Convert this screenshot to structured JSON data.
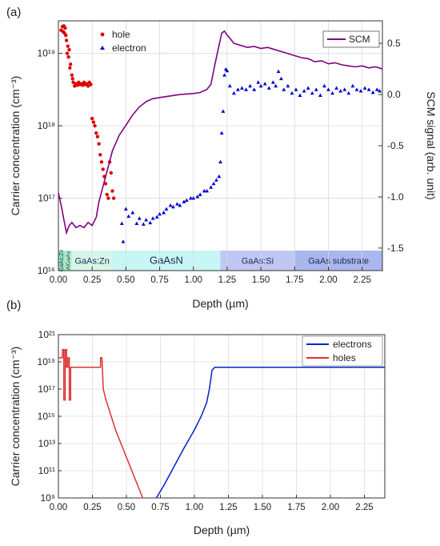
{
  "panel_labels": {
    "a": "(a)",
    "b": "(b)"
  },
  "chart_data": [
    {
      "type": "scatter",
      "panel": "(a)",
      "xlabel": "Depth (µm)",
      "ylabel": "Carrier concentration (cm⁻³)",
      "ylabel_right": "SCM signal (arb. unit)",
      "xlim": [
        0,
        2.4
      ],
      "ylim_log": [
        16,
        19.45
      ],
      "ylim_right": [
        -1.72,
        0.72
      ],
      "x_ticks": [
        "0.00",
        "0.25",
        "0.50",
        "0.75",
        "1.00",
        "1.25",
        "1.50",
        "1.75",
        "2.00",
        "2.25"
      ],
      "y_ticks": [
        "10¹⁶",
        "10¹⁷",
        "10¹⁸",
        "10¹⁹"
      ],
      "y_right_ticks": [
        "0.5",
        "0.0",
        "-0.5",
        "-1.0",
        "-1.5"
      ],
      "grid": true,
      "legend_left": {
        "placement": "top-left",
        "entries": [
          {
            "label": "hole",
            "color": "#e00000",
            "marker": "circle"
          },
          {
            "label": "electron",
            "color": "#0000d0",
            "marker": "triangle"
          }
        ]
      },
      "legend_right": {
        "placement": "top-right",
        "entries": [
          {
            "label": "SCM",
            "color": "#800080",
            "marker": "line"
          }
        ]
      },
      "layers": [
        {
          "label": "GaAs:Zn",
          "x": [
            0.0,
            0.05
          ],
          "color": "#9ee6c4",
          "rotated": true
        },
        {
          "label": "AlGaAs",
          "x": [
            0.05,
            0.1
          ],
          "color": "#b9f0d8",
          "rotated": true
        },
        {
          "label": "GaAs:Zn",
          "x": [
            0.1,
            0.4
          ],
          "color": "#d6f7e8",
          "rotated": false
        },
        {
          "label": "GaAsN",
          "x": [
            0.4,
            1.2
          ],
          "color": "#c8f6f4",
          "rotated": false
        },
        {
          "label": "GaAs:Si",
          "x": [
            1.2,
            1.75
          ],
          "color": "#bfc8f2",
          "rotated": false
        },
        {
          "label": "GaAs substrate",
          "x": [
            1.75,
            2.4
          ],
          "color": "#aab6ee",
          "rotated": false
        }
      ],
      "series": [
        {
          "name": "hole",
          "color": "#e00000",
          "marker": "circle",
          "x_log10": [
            [
              0.02,
              19.32
            ],
            [
              0.03,
              19.37
            ],
            [
              0.035,
              19.3
            ],
            [
              0.04,
              19.38
            ],
            [
              0.045,
              19.28
            ],
            [
              0.05,
              19.35
            ],
            [
              0.055,
              19.25
            ],
            [
              0.06,
              19.18
            ],
            [
              0.065,
              19.0
            ],
            [
              0.07,
              19.1
            ],
            [
              0.075,
              18.95
            ],
            [
              0.08,
              19.05
            ],
            [
              0.085,
              18.8
            ],
            [
              0.09,
              18.85
            ],
            [
              0.1,
              18.7
            ],
            [
              0.105,
              18.65
            ],
            [
              0.11,
              18.6
            ],
            [
              0.12,
              18.55
            ],
            [
              0.13,
              18.58
            ],
            [
              0.14,
              18.56
            ],
            [
              0.15,
              18.6
            ],
            [
              0.16,
              18.57
            ],
            [
              0.17,
              18.58
            ],
            [
              0.18,
              18.56
            ],
            [
              0.19,
              18.6
            ],
            [
              0.2,
              18.57
            ],
            [
              0.21,
              18.58
            ],
            [
              0.22,
              18.55
            ],
            [
              0.23,
              18.6
            ],
            [
              0.24,
              18.57
            ],
            [
              0.25,
              18.1
            ],
            [
              0.26,
              18.05
            ],
            [
              0.27,
              18.0
            ],
            [
              0.28,
              17.9
            ],
            [
              0.29,
              17.85
            ],
            [
              0.3,
              17.75
            ],
            [
              0.31,
              17.6
            ],
            [
              0.32,
              17.5
            ],
            [
              0.33,
              17.4
            ],
            [
              0.34,
              17.3
            ],
            [
              0.35,
              17.2
            ],
            [
              0.36,
              17.05
            ],
            [
              0.37,
              17.0
            ],
            [
              0.38,
              17.5
            ],
            [
              0.39,
              17.35
            ],
            [
              0.4,
              17.1
            ],
            [
              0.41,
              17.0
            ]
          ]
        },
        {
          "name": "electron",
          "color": "#0000d0",
          "marker": "triangle",
          "x_log10": [
            [
              0.47,
              16.65
            ],
            [
              0.48,
              16.4
            ],
            [
              0.5,
              16.85
            ],
            [
              0.52,
              16.75
            ],
            [
              0.55,
              16.8
            ],
            [
              0.58,
              16.65
            ],
            [
              0.6,
              16.72
            ],
            [
              0.63,
              16.64
            ],
            [
              0.65,
              16.7
            ],
            [
              0.68,
              16.66
            ],
            [
              0.7,
              16.72
            ],
            [
              0.73,
              16.74
            ],
            [
              0.75,
              16.78
            ],
            [
              0.78,
              16.8
            ],
            [
              0.8,
              16.85
            ],
            [
              0.83,
              16.9
            ],
            [
              0.85,
              16.88
            ],
            [
              0.88,
              16.92
            ],
            [
              0.9,
              16.9
            ],
            [
              0.93,
              16.95
            ],
            [
              0.95,
              16.97
            ],
            [
              0.98,
              17.0
            ],
            [
              1.0,
              17.0
            ],
            [
              1.03,
              17.02
            ],
            [
              1.05,
              17.05
            ],
            [
              1.08,
              17.1
            ],
            [
              1.1,
              17.1
            ],
            [
              1.13,
              17.15
            ],
            [
              1.15,
              17.2
            ],
            [
              1.17,
              17.25
            ],
            [
              1.19,
              17.3
            ],
            [
              1.2,
              17.5
            ],
            [
              1.21,
              17.9
            ],
            [
              1.22,
              18.2
            ],
            [
              1.23,
              18.7
            ],
            [
              1.24,
              18.78
            ],
            [
              1.25,
              18.76
            ],
            [
              1.27,
              18.55
            ],
            [
              1.3,
              18.45
            ],
            [
              1.33,
              18.5
            ],
            [
              1.36,
              18.52
            ],
            [
              1.39,
              18.5
            ],
            [
              1.42,
              18.55
            ],
            [
              1.45,
              18.5
            ],
            [
              1.48,
              18.6
            ],
            [
              1.5,
              18.55
            ],
            [
              1.53,
              18.58
            ],
            [
              1.56,
              18.52
            ],
            [
              1.59,
              18.6
            ],
            [
              1.61,
              18.55
            ],
            [
              1.63,
              18.75
            ],
            [
              1.65,
              18.65
            ],
            [
              1.67,
              18.5
            ],
            [
              1.7,
              18.55
            ],
            [
              1.73,
              18.45
            ],
            [
              1.76,
              18.5
            ],
            [
              1.79,
              18.42
            ],
            [
              1.82,
              18.48
            ],
            [
              1.85,
              18.52
            ],
            [
              1.88,
              18.45
            ],
            [
              1.91,
              18.5
            ],
            [
              1.94,
              18.42
            ],
            [
              1.97,
              18.55
            ],
            [
              2.0,
              18.5
            ],
            [
              2.03,
              18.45
            ],
            [
              2.06,
              18.52
            ],
            [
              2.09,
              18.48
            ],
            [
              2.12,
              18.5
            ],
            [
              2.15,
              18.45
            ],
            [
              2.18,
              18.55
            ],
            [
              2.21,
              18.5
            ],
            [
              2.24,
              18.48
            ],
            [
              2.27,
              18.52
            ],
            [
              2.3,
              18.5
            ],
            [
              2.33,
              18.46
            ],
            [
              2.36,
              18.5
            ],
            [
              2.38,
              18.48
            ]
          ]
        },
        {
          "name": "SCM",
          "color": "#800080",
          "marker": "line",
          "axis": "right",
          "x_y": [
            [
              0.0,
              -0.96
            ],
            [
              0.02,
              -1.08
            ],
            [
              0.04,
              -1.22
            ],
            [
              0.06,
              -1.35
            ],
            [
              0.08,
              -1.28
            ],
            [
              0.1,
              -1.25
            ],
            [
              0.13,
              -1.3
            ],
            [
              0.16,
              -1.28
            ],
            [
              0.19,
              -1.3
            ],
            [
              0.22,
              -1.25
            ],
            [
              0.25,
              -1.28
            ],
            [
              0.28,
              -1.2
            ],
            [
              0.3,
              -1.05
            ],
            [
              0.33,
              -0.9
            ],
            [
              0.36,
              -0.75
            ],
            [
              0.4,
              -0.55
            ],
            [
              0.45,
              -0.4
            ],
            [
              0.5,
              -0.3
            ],
            [
              0.55,
              -0.2
            ],
            [
              0.6,
              -0.12
            ],
            [
              0.65,
              -0.07
            ],
            [
              0.7,
              -0.04
            ],
            [
              0.8,
              -0.02
            ],
            [
              0.9,
              0.0
            ],
            [
              1.0,
              0.01
            ],
            [
              1.05,
              0.02
            ],
            [
              1.1,
              0.05
            ],
            [
              1.13,
              0.1
            ],
            [
              1.16,
              0.3
            ],
            [
              1.19,
              0.48
            ],
            [
              1.21,
              0.6
            ],
            [
              1.23,
              0.62
            ],
            [
              1.25,
              0.58
            ],
            [
              1.27,
              0.55
            ],
            [
              1.3,
              0.5
            ],
            [
              1.35,
              0.48
            ],
            [
              1.4,
              0.46
            ],
            [
              1.45,
              0.47
            ],
            [
              1.5,
              0.45
            ],
            [
              1.55,
              0.46
            ],
            [
              1.6,
              0.44
            ],
            [
              1.65,
              0.42
            ],
            [
              1.7,
              0.4
            ],
            [
              1.75,
              0.38
            ],
            [
              1.8,
              0.36
            ],
            [
              1.85,
              0.35
            ],
            [
              1.9,
              0.32
            ],
            [
              1.95,
              0.33
            ],
            [
              2.0,
              0.3
            ],
            [
              2.05,
              0.31
            ],
            [
              2.1,
              0.29
            ],
            [
              2.15,
              0.28
            ],
            [
              2.2,
              0.27
            ],
            [
              2.25,
              0.28
            ],
            [
              2.3,
              0.26
            ],
            [
              2.35,
              0.27
            ],
            [
              2.4,
              0.25
            ]
          ]
        }
      ]
    },
    {
      "type": "line",
      "panel": "(b)",
      "xlabel": "Depth (µm)",
      "ylabel": "Carrier concentration (cm⁻³)",
      "xlim": [
        0,
        2.4
      ],
      "ylim_log": [
        9,
        21
      ],
      "x_ticks": [
        "0.00",
        "0.25",
        "0.50",
        "0.75",
        "1.00",
        "1.25",
        "1.50",
        "1.75",
        "2.00",
        "2.25"
      ],
      "y_ticks": [
        "10²¹",
        "10¹⁹",
        "10¹⁷",
        "10¹⁵",
        "10¹³",
        "10¹¹",
        "10⁹"
      ],
      "grid": true,
      "legend": {
        "placement": "top-right",
        "entries": [
          {
            "label": "electrons",
            "color": "#0022cc"
          },
          {
            "label": "holes",
            "color": "#e03030"
          }
        ]
      },
      "series": [
        {
          "name": "electrons",
          "color": "#0022cc",
          "x_log10": [
            [
              0.72,
              9.0
            ],
            [
              0.78,
              10.0
            ],
            [
              0.85,
              11.3
            ],
            [
              0.92,
              12.6
            ],
            [
              1.0,
              14.0
            ],
            [
              1.05,
              15.0
            ],
            [
              1.09,
              16.0
            ],
            [
              1.11,
              17.0
            ],
            [
              1.13,
              18.4
            ],
            [
              1.15,
              18.6
            ],
            [
              2.4,
              18.6
            ]
          ]
        },
        {
          "name": "holes",
          "color": "#e03030",
          "x_log10": [
            [
              0.0,
              19.3
            ],
            [
              0.03,
              19.3
            ],
            [
              0.03,
              19.9
            ],
            [
              0.04,
              19.9
            ],
            [
              0.04,
              16.2
            ],
            [
              0.05,
              16.2
            ],
            [
              0.05,
              19.9
            ],
            [
              0.06,
              19.9
            ],
            [
              0.06,
              18.6
            ],
            [
              0.07,
              18.6
            ],
            [
              0.07,
              19.3
            ],
            [
              0.08,
              19.3
            ],
            [
              0.08,
              18.6
            ],
            [
              0.08,
              16.2
            ],
            [
              0.09,
              16.2
            ],
            [
              0.09,
              18.6
            ],
            [
              0.31,
              18.6
            ],
            [
              0.31,
              19.3
            ],
            [
              0.32,
              19.3
            ],
            [
              0.33,
              17.0
            ],
            [
              0.35,
              16.2
            ],
            [
              0.42,
              14.0
            ],
            [
              0.5,
              12.0
            ],
            [
              0.56,
              10.5
            ],
            [
              0.62,
              9.0
            ]
          ]
        }
      ]
    }
  ]
}
